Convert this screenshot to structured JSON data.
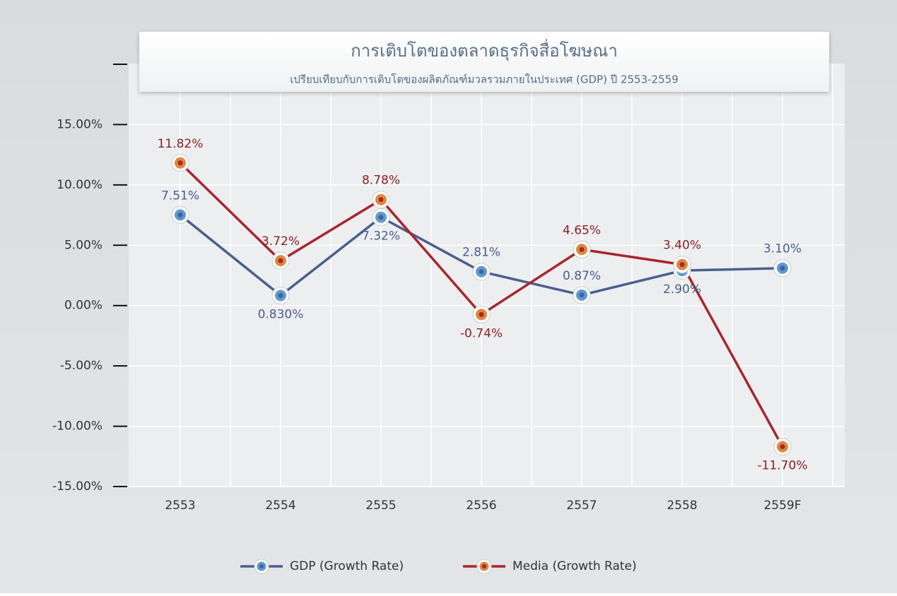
{
  "chart_data": {
    "type": "line",
    "title": "การเติบโตของตลาดธุรกิจสื่อโฆษณา",
    "subtitle": "เปรียบเทียบกับการเติบโตของผลิตภัณฑ์มวลรวมภายในประเทศ (GDP) ปี 2553-2559",
    "categories": [
      "2553",
      "2554",
      "2555",
      "2556",
      "2557",
      "2558",
      "2559F"
    ],
    "series": [
      {
        "name": "GDP (Growth Rate)",
        "color": "#4a5f8c",
        "marker_color": "#5b9bd5",
        "values": [
          7.51,
          0.83,
          7.32,
          2.81,
          0.87,
          2.9,
          3.1
        ],
        "value_labels": [
          "7.51%",
          "0.830%",
          "7.32%",
          "2.81%",
          "0.87%",
          "2.90%",
          "3.10%"
        ]
      },
      {
        "name": "Media (Growth Rate)",
        "color": "#a8262e",
        "marker_color": "#e0873a",
        "values": [
          11.82,
          3.72,
          8.78,
          -0.74,
          4.65,
          3.4,
          -11.7
        ],
        "value_labels": [
          "11.82%",
          "3.72%",
          "8.78%",
          "-0.74%",
          "4.65%",
          "3.40%",
          "-11.70%"
        ]
      }
    ],
    "ylim": [
      -15,
      20
    ],
    "yticks": [
      {
        "value": -15,
        "label": "-15.00%"
      },
      {
        "value": -10,
        "label": "-10.00%"
      },
      {
        "value": -5,
        "label": "-5.00%"
      },
      {
        "value": 0,
        "label": "0.00%"
      },
      {
        "value": 5,
        "label": "5.00%"
      },
      {
        "value": 10,
        "label": "10.00%"
      },
      {
        "value": 15,
        "label": "15.00%"
      }
    ],
    "grid": true,
    "legend": "bottom"
  }
}
